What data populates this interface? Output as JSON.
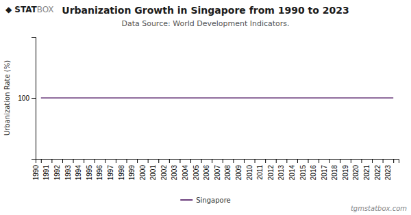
{
  "chart_data": {
    "type": "line",
    "title": "Urbanization Growth in Singapore from 1990 to 2023",
    "subtitle": "Data Source: World Development Indicators.",
    "ylabel": "Urbanization Rate (%)",
    "annotations": [
      "tgmstatbox.com",
      "◆",
      "STAT",
      "BOX"
    ],
    "x": [
      1990,
      1991,
      1992,
      1993,
      1994,
      1995,
      1996,
      1997,
      1998,
      1999,
      2000,
      2001,
      2002,
      2003,
      2004,
      2005,
      2006,
      2007,
      2008,
      2009,
      2010,
      2011,
      2012,
      2013,
      2014,
      2015,
      2016,
      2017,
      2018,
      2019,
      2020,
      2021,
      2022,
      2023
    ],
    "series": [
      {
        "name": "Singapore",
        "color": "#6b3d7c",
        "values": [
          100,
          100,
          100,
          100,
          100,
          100,
          100,
          100,
          100,
          100,
          100,
          100,
          100,
          100,
          100,
          100,
          100,
          100,
          100,
          100,
          100,
          100,
          100,
          100,
          100,
          100,
          100,
          100,
          100,
          100,
          100,
          100,
          100,
          100
        ]
      }
    ],
    "xlim": [
      1989.5,
      2023.5
    ],
    "xticks": [
      1990,
      1991,
      1992,
      1993,
      1994,
      1995,
      1996,
      1997,
      1998,
      1999,
      2000,
      2001,
      2002,
      2003,
      2004,
      2005,
      2006,
      2007,
      2008,
      2009,
      2010,
      2011,
      2012,
      2013,
      2014,
      2015,
      2016,
      2017,
      2018,
      2019,
      2020,
      2021,
      2022,
      2023
    ],
    "ylim": [
      0,
      200
    ],
    "yticks": [
      100
    ],
    "grid": false,
    "legend": "bottom"
  }
}
